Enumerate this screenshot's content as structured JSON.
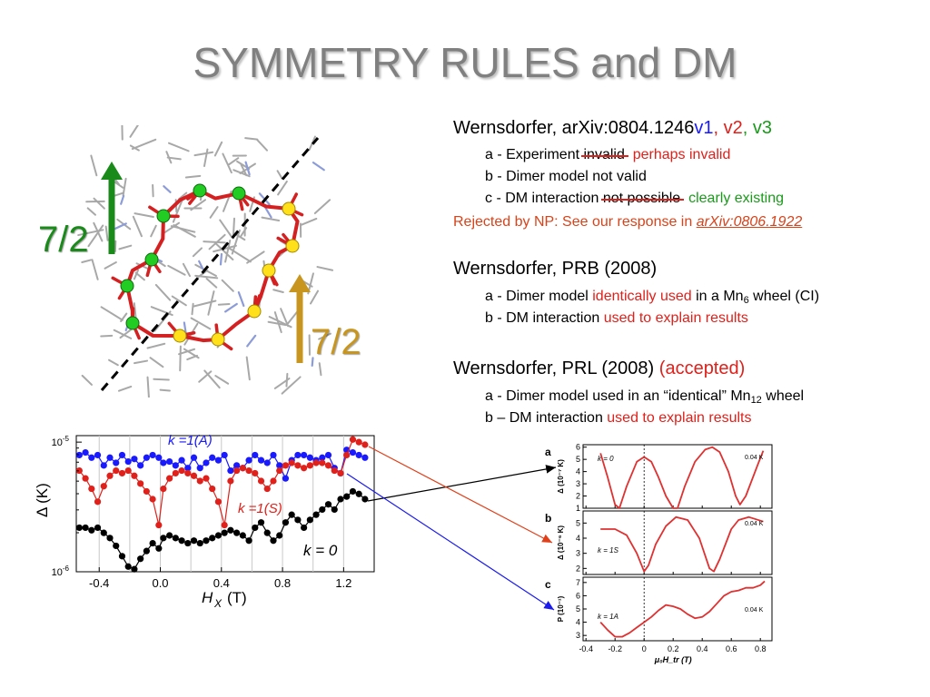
{
  "slide": {
    "title": "SYMMETRY RULES and DM"
  },
  "refs": {
    "r1": {
      "head": "Wernsdorfer, arXiv:0804.1246",
      "v1": "v1",
      "sep1": ", ",
      "v2": "v2",
      "sep2": ", ",
      "v3": "v3",
      "a_pre": "a - Experiment ",
      "a_struck": "invalid",
      "a_new": "perhaps invalid",
      "b": "b - Dimer model not valid",
      "c_pre": "c - DM interaction ",
      "c_struck": "not possible",
      "c_new": "clearly existing",
      "rej_pre": "Rejected by NP: See our response in ",
      "rej_link": "arXiv:0806.1922"
    },
    "r2": {
      "head": "Wernsdorfer, PRB (2008)",
      "a_pre": "a -  Dimer model ",
      "a_red": "identically used",
      "a_post": " in a Mn",
      "a_sub": "6",
      "a_end": " wheel (CI)",
      "b_pre": "b -  DM interaction ",
      "b_red": "used to explain results"
    },
    "r3": {
      "head": "Wernsdorfer, PRL (2008) ",
      "head_red": "(accepted)",
      "a_pre": "a -  Dimer model used in an “identical” Mn",
      "a_sub": "12",
      "a_end": " wheel",
      "b_pre": "b – DM interaction ",
      "b_red": "used to explain results"
    }
  },
  "molecule": {
    "label_left": "7/2",
    "label_right": "7/2",
    "arrow_left_color": "#1a8a1a",
    "arrow_right_color": "#c8961e"
  },
  "chart_data": [
    {
      "type": "scatter",
      "title": "",
      "xlabel": "H",
      "xlabel_sub": "X",
      "xlabel_unit": "(T)",
      "ylabel": "Δ (K)",
      "xticks": [
        "-0.4",
        "0.0",
        "0.4",
        "0.8",
        "1.2"
      ],
      "xtick_values": [
        -0.4,
        0.0,
        0.4,
        0.8,
        1.2
      ],
      "yticks": [
        "10-5",
        "10-6"
      ],
      "xlim": [
        -0.55,
        1.4
      ],
      "ylim_log10": [
        -6,
        -4.95
      ],
      "grid": "vertical",
      "annotations": [
        {
          "text": "k =1(A)",
          "color": "#1a1aff"
        },
        {
          "text": "k =1(S)",
          "color": "#e0201a"
        },
        {
          "text": "k = 0",
          "color": "#000000"
        }
      ],
      "series": [
        {
          "name": "k =1(A)",
          "color": "#1a1aff",
          "x": [
            -0.53,
            -0.49,
            -0.45,
            -0.41,
            -0.37,
            -0.33,
            -0.29,
            -0.25,
            -0.21,
            -0.17,
            -0.13,
            -0.09,
            -0.05,
            -0.01,
            0.02,
            0.06,
            0.1,
            0.14,
            0.18,
            0.22,
            0.26,
            0.3,
            0.34,
            0.38,
            0.42,
            0.46,
            0.5,
            0.54,
            0.58,
            0.62,
            0.66,
            0.7,
            0.74,
            0.78,
            0.82,
            0.86,
            0.9,
            0.94,
            0.98,
            1.02,
            1.06,
            1.1,
            1.14,
            1.18,
            1.22,
            1.26,
            1.3,
            1.34
          ],
          "y": [
            -5.1,
            -5.08,
            -5.12,
            -5.1,
            -5.18,
            -5.12,
            -5.16,
            -5.1,
            -5.15,
            -5.13,
            -5.18,
            -5.12,
            -5.1,
            -5.12,
            -5.16,
            -5.15,
            -5.18,
            -5.14,
            -5.2,
            -5.12,
            -5.2,
            -5.16,
            -5.12,
            -5.14,
            -5.1,
            -5.22,
            -5.18,
            -5.2,
            -5.14,
            -5.1,
            -5.14,
            -5.16,
            -5.1,
            -5.18,
            -5.28,
            -5.14,
            -5.1,
            -5.1,
            -5.12,
            -5.14,
            -5.12,
            -5.1,
            -5.2,
            -5.24,
            -5.06,
            -5.08,
            -5.1,
            -5.12
          ]
        },
        {
          "name": "k =1(S)",
          "color": "#e0201a",
          "x": [
            -0.53,
            -0.49,
            -0.45,
            -0.41,
            -0.37,
            -0.33,
            -0.29,
            -0.25,
            -0.21,
            -0.17,
            -0.13,
            -0.09,
            -0.05,
            -0.01,
            0.02,
            0.06,
            0.1,
            0.14,
            0.18,
            0.22,
            0.26,
            0.3,
            0.34,
            0.38,
            0.42,
            0.46,
            0.5,
            0.54,
            0.58,
            0.62,
            0.66,
            0.7,
            0.74,
            0.78,
            0.82,
            0.86,
            0.9,
            0.94,
            0.98,
            1.02,
            1.06,
            1.1,
            1.14,
            1.18,
            1.22,
            1.26,
            1.3,
            1.34
          ],
          "y": [
            -5.22,
            -5.28,
            -5.36,
            -5.46,
            -5.34,
            -5.26,
            -5.22,
            -5.24,
            -5.22,
            -5.26,
            -5.32,
            -5.38,
            -5.44,
            -5.64,
            -5.36,
            -5.28,
            -5.24,
            -5.22,
            -5.24,
            -5.26,
            -5.3,
            -5.28,
            -5.36,
            -5.46,
            -5.64,
            -5.3,
            -5.22,
            -5.2,
            -5.22,
            -5.24,
            -5.3,
            -5.36,
            -5.3,
            -5.22,
            -5.18,
            -5.16,
            -5.18,
            -5.2,
            -5.18,
            -5.16,
            -5.16,
            -5.18,
            -5.22,
            -5.24,
            -5.1,
            -4.98,
            -5.0,
            -5.02
          ]
        },
        {
          "name": "k = 0",
          "color": "#000000",
          "x": [
            -0.53,
            -0.49,
            -0.45,
            -0.41,
            -0.37,
            -0.33,
            -0.29,
            -0.25,
            -0.21,
            -0.17,
            -0.13,
            -0.09,
            -0.05,
            -0.01,
            0.02,
            0.06,
            0.1,
            0.14,
            0.18,
            0.22,
            0.26,
            0.3,
            0.34,
            0.38,
            0.42,
            0.46,
            0.5,
            0.54,
            0.58,
            0.62,
            0.66,
            0.7,
            0.74,
            0.78,
            0.82,
            0.86,
            0.9,
            0.94,
            0.98,
            1.02,
            1.06,
            1.1,
            1.14,
            1.18,
            1.22,
            1.26,
            1.3,
            1.34
          ],
          "y": [
            -5.66,
            -5.66,
            -5.68,
            -5.66,
            -5.7,
            -5.74,
            -5.8,
            -5.88,
            -5.96,
            -5.98,
            -5.9,
            -5.84,
            -5.78,
            -5.82,
            -5.74,
            -5.72,
            -5.74,
            -5.76,
            -5.78,
            -5.76,
            -5.78,
            -5.76,
            -5.74,
            -5.72,
            -5.7,
            -5.68,
            -5.7,
            -5.72,
            -5.76,
            -5.66,
            -5.62,
            -5.7,
            -5.76,
            -5.72,
            -5.62,
            -5.56,
            -5.6,
            -5.66,
            -5.6,
            -5.56,
            -5.52,
            -5.48,
            -5.52,
            -5.44,
            -5.42,
            -5.38,
            -5.4,
            -5.44
          ]
        }
      ]
    },
    {
      "type": "line",
      "panels": [
        {
          "letter": "a",
          "k_label": "k = 0",
          "temp": "0.04 K",
          "ylabel": "Δ (10⁻⁷ K)",
          "yticks": [
            "1",
            "2",
            "3",
            "4",
            "5",
            "6"
          ],
          "ylim": [
            1,
            6.2
          ],
          "x": [
            -0.3,
            -0.25,
            -0.2,
            -0.17,
            -0.12,
            -0.05,
            0.0,
            0.05,
            0.1,
            0.15,
            0.2,
            0.23,
            0.28,
            0.35,
            0.42,
            0.47,
            0.52,
            0.58,
            0.63,
            0.66,
            0.7,
            0.78,
            0.82
          ],
          "y": [
            5.5,
            3.5,
            1.3,
            1.0,
            2.8,
            4.8,
            5.2,
            4.8,
            3.5,
            2.0,
            1.0,
            1.0,
            2.8,
            4.8,
            5.8,
            6.0,
            5.6,
            4.0,
            2.0,
            1.3,
            2.0,
            4.5,
            5.7
          ]
        },
        {
          "letter": "b",
          "k_label": "k = 1S",
          "temp": "0.04 K",
          "ylabel": "Δ (10⁻⁶ K)",
          "yticks": [
            "2",
            "3",
            "4",
            "5"
          ],
          "ylim": [
            1.6,
            5.8
          ],
          "x": [
            -0.3,
            -0.2,
            -0.12,
            -0.05,
            0.0,
            0.03,
            0.08,
            0.15,
            0.22,
            0.3,
            0.38,
            0.45,
            0.48,
            0.52,
            0.6,
            0.65,
            0.72,
            0.82
          ],
          "y": [
            4.6,
            4.6,
            4.2,
            3.0,
            1.8,
            2.2,
            3.6,
            4.8,
            5.4,
            5.2,
            4.0,
            2.0,
            1.8,
            2.6,
            4.6,
            5.2,
            5.4,
            5.1
          ]
        },
        {
          "letter": "c",
          "k_label": "k = 1A",
          "temp": "0.04 K",
          "ylabel": "P (10⁻¹)",
          "yticks": [
            "3",
            "4",
            "5",
            "6",
            "7"
          ],
          "ylim": [
            2.6,
            7.4
          ],
          "x": [
            -0.3,
            -0.25,
            -0.2,
            -0.15,
            -0.1,
            -0.05,
            0.0,
            0.05,
            0.1,
            0.15,
            0.2,
            0.25,
            0.3,
            0.35,
            0.4,
            0.45,
            0.5,
            0.55,
            0.6,
            0.65,
            0.7,
            0.75,
            0.8,
            0.83
          ],
          "y": [
            4.0,
            3.4,
            2.9,
            2.9,
            3.2,
            3.6,
            4.0,
            4.4,
            4.9,
            5.3,
            5.2,
            5.0,
            4.6,
            4.3,
            4.4,
            4.8,
            5.4,
            6.0,
            6.3,
            6.4,
            6.6,
            6.6,
            6.8,
            7.1
          ]
        }
      ],
      "xticks": [
        "-0.4",
        "-0.2",
        "0",
        "0.2",
        "0.4",
        "0.6",
        "0.8"
      ],
      "xlabel": "μ₀H_tr (T)",
      "xlim": [
        -0.42,
        0.88
      ]
    }
  ]
}
